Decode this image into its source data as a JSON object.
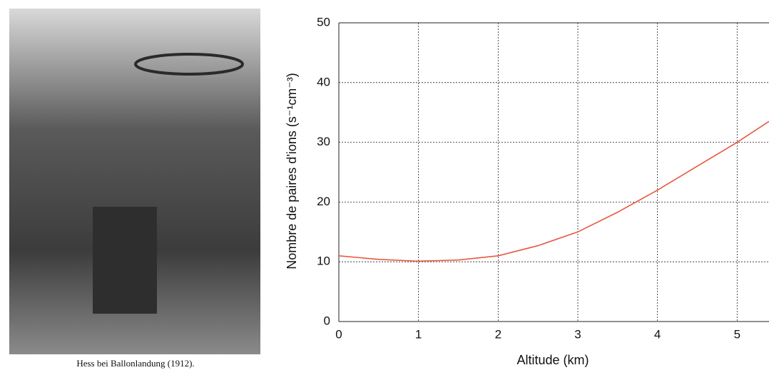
{
  "photo_caption": "Hess bei Ballonlandung (1912).",
  "chart_data": {
    "type": "line",
    "xlabel": "Altitude (km)",
    "ylabel": "Nombre de paires d'ions (s⁻¹cm⁻³)",
    "x": [
      0,
      0.5,
      1,
      1.5,
      2,
      2.5,
      3,
      3.5,
      4,
      4.5,
      5,
      5.4
    ],
    "series": [
      {
        "color": "#e8583f",
        "values": [
          11,
          10.4,
          10.1,
          10.3,
          11,
          12.7,
          15,
          18.3,
          22,
          26,
          30,
          33.5
        ]
      }
    ],
    "xlim": [
      0,
      5.4
    ],
    "ylim": [
      0,
      50
    ],
    "xticks": [
      0,
      1,
      2,
      3,
      4,
      5
    ],
    "yticks": [
      0,
      10,
      20,
      30,
      40,
      50
    ],
    "grid": true
  }
}
